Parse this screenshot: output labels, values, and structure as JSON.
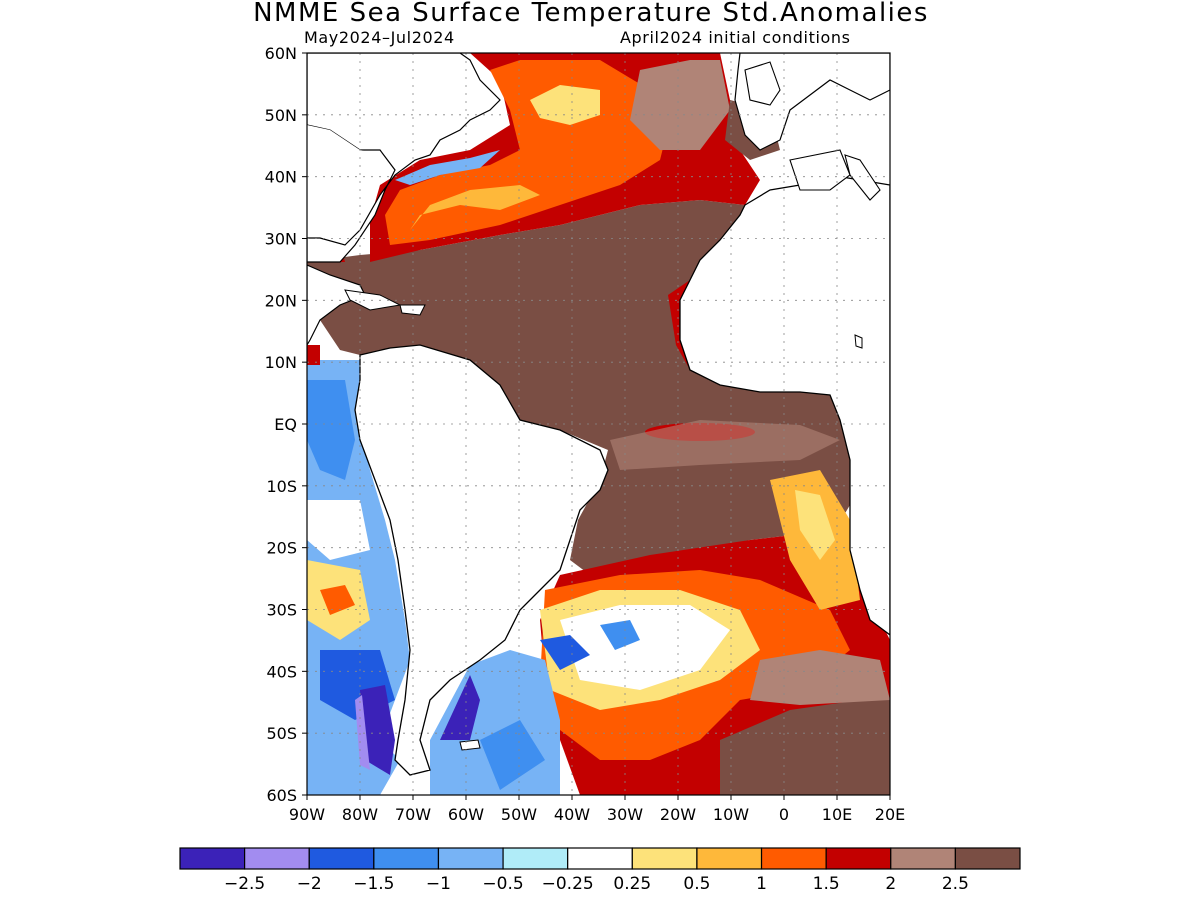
{
  "title": "NMME Sea Surface Temperature Std.Anomalies",
  "subtitle_left": "May2024–Jul2024",
  "subtitle_right": "April2024 initial conditions",
  "lat_labels": [
    "60N",
    "50N",
    "40N",
    "30N",
    "20N",
    "10N",
    "EQ",
    "10S",
    "20S",
    "30S",
    "40S",
    "50S",
    "60S"
  ],
  "lon_labels": [
    "90W",
    "80W",
    "70W",
    "60W",
    "50W",
    "40W",
    "30W",
    "20W",
    "10W",
    "0",
    "10E",
    "20E"
  ],
  "colorbar": {
    "colors": [
      "#3b22b8",
      "#a28cf0",
      "#1f5ae0",
      "#3f8ff0",
      "#77b3f5",
      "#b0ecf8",
      "#ffffff",
      "#fde27a",
      "#feb83a",
      "#ff5b00",
      "#c30000",
      "#b08477",
      "#7a4e44"
    ],
    "labels": [
      "−2.5",
      "−2",
      "−1.5",
      "−1",
      "−0.5",
      "−0.25",
      "0.25",
      "0.5",
      "1",
      "1.5",
      "2",
      "2.5"
    ]
  },
  "map_colors": {
    "land": "#ffffff",
    "coast": "#000000",
    "grid": "#888888"
  }
}
